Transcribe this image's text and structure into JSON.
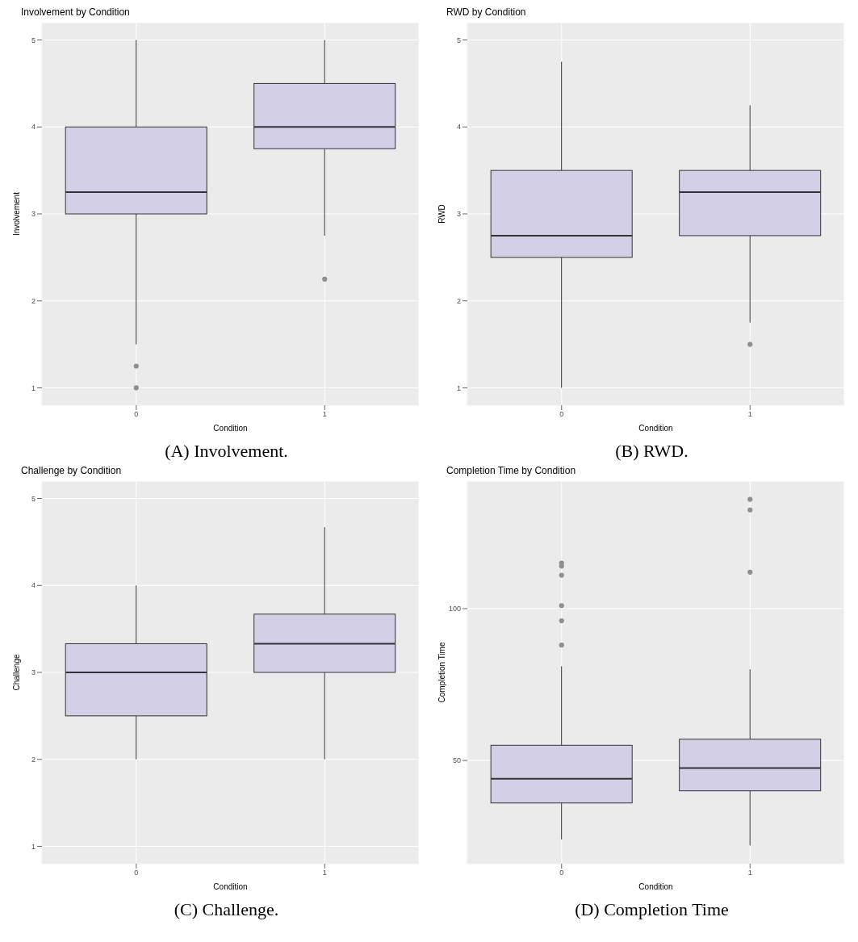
{
  "chart_data": [
    {
      "type": "box",
      "title": "Involvement by Condition",
      "xlabel": "Condition",
      "ylabel": "Involvement",
      "categories": [
        "0",
        "1"
      ],
      "color": "#d3cfe6",
      "ylim": [
        0.8,
        5.2
      ],
      "yticks": [
        1,
        2,
        3,
        4,
        5
      ],
      "grid": true,
      "annotations": [
        "(A) Involvement."
      ],
      "boxes": [
        {
          "low": 1.5,
          "q1": 3,
          "median": 3.25,
          "q3": 4,
          "high": 5,
          "outliers": [
            1.25,
            1
          ]
        },
        {
          "low": 2.75,
          "q1": 3.75,
          "median": 4,
          "q3": 4.5,
          "high": 5,
          "outliers": [
            2.25
          ]
        }
      ]
    },
    {
      "type": "box",
      "title": "RWD by Condition",
      "xlabel": "Condition",
      "ylabel": "RWD",
      "categories": [
        "0",
        "1"
      ],
      "color": "#d3cfe6",
      "ylim": [
        0.8,
        5.2
      ],
      "yticks": [
        1,
        2,
        3,
        4,
        5
      ],
      "grid": true,
      "annotations": [
        "(B) RWD."
      ],
      "boxes": [
        {
          "low": 1,
          "q1": 2.5,
          "median": 2.75,
          "q3": 3.5,
          "high": 4.75
        },
        {
          "low": 1.75,
          "q1": 2.75,
          "median": 3.25,
          "q3": 3.5,
          "high": 4.25,
          "outliers": [
            1.5
          ]
        }
      ]
    },
    {
      "type": "box",
      "title": "Challenge by Condition",
      "xlabel": "Condition",
      "ylabel": "Challenge",
      "categories": [
        "0",
        "1"
      ],
      "color": "#d3cfe6",
      "ylim": [
        0.8,
        5.2
      ],
      "yticks": [
        1,
        2,
        3,
        4,
        5
      ],
      "grid": true,
      "annotations": [
        "(C) Challenge."
      ],
      "boxes": [
        {
          "low": 2,
          "q1": 2.5,
          "median": 3,
          "q3": 3.33,
          "high": 4
        },
        {
          "low": 2,
          "q1": 3,
          "median": 3.33,
          "q3": 3.67,
          "high": 4.67
        }
      ]
    },
    {
      "type": "box",
      "title": "Completion Time by Condition",
      "xlabel": "Condition",
      "ylabel": "Completion Time",
      "categories": [
        "0",
        "1"
      ],
      "color": "#d3cfe6",
      "ylim": [
        16,
        142
      ],
      "yticks": [
        50,
        100
      ],
      "grid": true,
      "annotations": [
        "(D) Completion Time"
      ],
      "boxes": [
        {
          "low": 24,
          "q1": 36,
          "median": 44,
          "q3": 55,
          "high": 81,
          "outliers": [
            115,
            114,
            111,
            101,
            96,
            88
          ]
        },
        {
          "low": 22,
          "q1": 40,
          "median": 47.5,
          "q3": 57,
          "high": 80,
          "outliers": [
            136,
            132.5,
            112
          ]
        }
      ]
    }
  ]
}
